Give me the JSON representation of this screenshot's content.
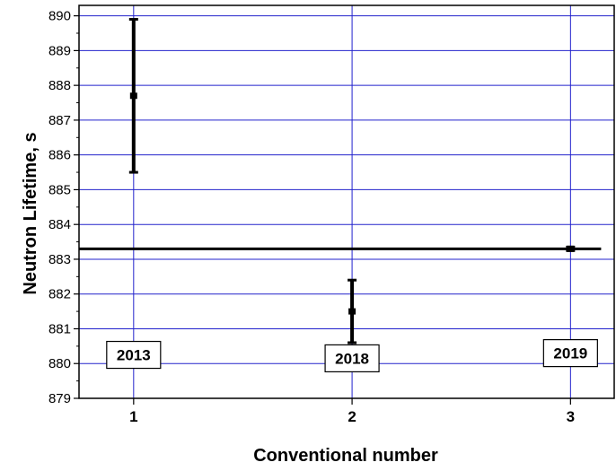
{
  "chart_data": {
    "type": "scatter",
    "xlabel": "Conventional number",
    "ylabel": "Neutron Lifetime, s",
    "xlim": [
      0.75,
      3.2
    ],
    "ylim": [
      879,
      890.3
    ],
    "x_ticks": [
      1,
      2,
      3
    ],
    "y_ticks": [
      879,
      880,
      881,
      882,
      883,
      884,
      885,
      886,
      887,
      888,
      889,
      890
    ],
    "grid": true,
    "grid_color": "#2222cc",
    "points": [
      {
        "x": 1,
        "y": 887.7,
        "low": 885.5,
        "high": 889.9,
        "label": "2013",
        "label_y": 880.25
      },
      {
        "x": 2,
        "y": 881.5,
        "low": 880.6,
        "high": 882.4,
        "label": "2018",
        "label_y": 880.15
      },
      {
        "x": 3,
        "y": 883.3,
        "low": 883.25,
        "high": 883.35,
        "label": "2019",
        "label_y": 880.3
      }
    ],
    "reference_line": {
      "y": 883.3,
      "x_from": 0.75,
      "x_to": 3.14
    }
  }
}
